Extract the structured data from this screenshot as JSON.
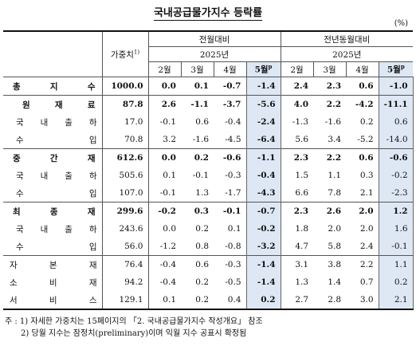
{
  "title": "국내공급물가지수 등락률",
  "unit": "(%)",
  "header": {
    "weight": "가중치",
    "weight_note": "1)",
    "mom": "전월대비",
    "yoy": "전년동월대비",
    "year": "2025년",
    "months": [
      "2월",
      "3월",
      "4월",
      "5월"
    ],
    "prelim": "p"
  },
  "rows": [
    {
      "label": "총지수",
      "weight": "1000.0",
      "mom": [
        "0.0",
        "0.1",
        "-0.7",
        "-1.4"
      ],
      "yoy": [
        "2.4",
        "2.3",
        "0.6",
        "-1.0"
      ]
    },
    {
      "label": "원재료",
      "weight": "87.8",
      "mom": [
        "2.6",
        "-1.1",
        "-3.7",
        "-5.6"
      ],
      "yoy": [
        "4.0",
        "2.2",
        "-4.2",
        "-11.1"
      ]
    },
    {
      "label": "국내출하",
      "weight": "17.0",
      "mom": [
        "-0.1",
        "0.6",
        "-0.4",
        "-2.4"
      ],
      "yoy": [
        "-1.3",
        "-1.6",
        "0.2",
        "0.6"
      ]
    },
    {
      "label": "수입",
      "weight": "70.8",
      "mom": [
        "3.2",
        "-1.6",
        "-4.5",
        "-6.4"
      ],
      "yoy": [
        "5.6",
        "3.4",
        "-5.2",
        "-14.0"
      ]
    },
    {
      "label": "중간재",
      "weight": "612.6",
      "mom": [
        "0.0",
        "0.2",
        "-0.6",
        "-1.1"
      ],
      "yoy": [
        "2.3",
        "2.2",
        "0.6",
        "-0.6"
      ]
    },
    {
      "label": "국내출하",
      "weight": "505.6",
      "mom": [
        "0.1",
        "-0.1",
        "-0.3",
        "-0.4"
      ],
      "yoy": [
        "1.5",
        "1.1",
        "0.3",
        "-0.2"
      ]
    },
    {
      "label": "수입",
      "weight": "107.0",
      "mom": [
        "-0.1",
        "1.3",
        "-1.7",
        "-4.3"
      ],
      "yoy": [
        "6.6",
        "7.8",
        "2.1",
        "-2.3"
      ]
    },
    {
      "label": "최종재",
      "weight": "299.6",
      "mom": [
        "-0.2",
        "0.3",
        "-0.1",
        "-0.7"
      ],
      "yoy": [
        "2.3",
        "2.6",
        "2.0",
        "1.2"
      ]
    },
    {
      "label": "국내출하",
      "weight": "243.6",
      "mom": [
        "0.0",
        "0.2",
        "0.1",
        "-0.2"
      ],
      "yoy": [
        "1.8",
        "2.0",
        "2.0",
        "1.6"
      ]
    },
    {
      "label": "수입",
      "weight": "56.0",
      "mom": [
        "-1.2",
        "0.8",
        "-0.8",
        "-3.2"
      ],
      "yoy": [
        "4.7",
        "5.8",
        "2.4",
        "-0.1"
      ]
    },
    {
      "label": "자본재",
      "weight": "76.4",
      "mom": [
        "-0.4",
        "0.6",
        "-0.3",
        "-1.4"
      ],
      "yoy": [
        "3.1",
        "3.8",
        "2.2",
        "1.1"
      ]
    },
    {
      "label": "소비재",
      "weight": "94.2",
      "mom": [
        "-0.4",
        "0.2",
        "-0.5",
        "-1.4"
      ],
      "yoy": [
        "1.3",
        "1.4",
        "0.7",
        "0.2"
      ]
    },
    {
      "label": "서비스",
      "weight": "129.1",
      "mom": [
        "0.1",
        "0.2",
        "0.4",
        "0.2"
      ],
      "yoy": [
        "2.7",
        "2.8",
        "3.0",
        "2.1"
      ]
    }
  ],
  "notes": [
    "주 : 1) 자세한 가중치는 15페이지의 「2. 국내공급물가지수 작성개요」 참조",
    "2) 당월 지수는 잠정치(preliminary)이며 익월 지수 공표시 확정됨"
  ]
}
